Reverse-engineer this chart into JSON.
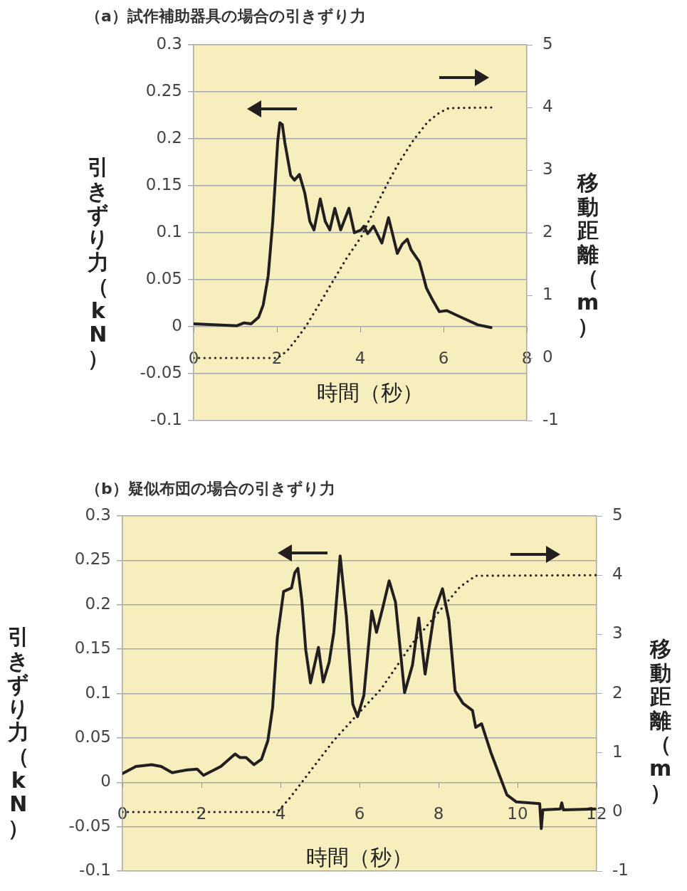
{
  "chart_data": [
    {
      "type": "line",
      "title": "（a）試作補助器具の場合の引きずり力",
      "xlabel": "時間（秒）",
      "ylabel": "引きずり力（kN）",
      "y2label": "移動距離（m）",
      "xlim": [
        0,
        8
      ],
      "xticks": [
        0,
        2,
        4,
        6,
        8
      ],
      "ylim": [
        -0.1,
        0.3
      ],
      "yticks": [
        -0.1,
        -0.05,
        0,
        0.05,
        0.1,
        0.15,
        0.2,
        0.25,
        0.3
      ],
      "y2lim": [
        -1,
        5
      ],
      "y2ticks": [
        -1,
        0,
        1,
        2,
        3,
        4,
        5
      ],
      "grid": "y",
      "marker": "none",
      "series": [
        {
          "color": "#231f20",
          "line_style": "solid",
          "x": [
            0,
            1.04,
            1.21,
            1.38,
            1.56,
            1.67,
            1.79,
            1.9,
            2.02,
            2.07,
            2.13,
            2.19,
            2.33,
            2.42,
            2.54,
            2.67,
            2.79,
            2.89,
            3.04,
            3.16,
            3.27,
            3.39,
            3.53,
            3.73,
            3.86,
            4.02,
            4.09,
            4.18,
            4.32,
            4.52,
            4.68,
            4.89,
            5.01,
            5.13,
            5.22,
            5.42,
            5.5,
            5.59,
            5.73,
            5.9,
            6.08,
            6.42,
            6.82,
            7.14
          ],
          "values": [
            0.003,
            0.001,
            0.004,
            0.003,
            0.01,
            0.023,
            0.054,
            0.112,
            0.198,
            0.217,
            0.215,
            0.196,
            0.161,
            0.156,
            0.162,
            0.142,
            0.112,
            0.103,
            0.136,
            0.112,
            0.103,
            0.126,
            0.103,
            0.126,
            0.1,
            0.103,
            0.107,
            0.099,
            0.107,
            0.089,
            0.116,
            0.078,
            0.088,
            0.093,
            0.082,
            0.069,
            0.056,
            0.041,
            0.029,
            0.016,
            0.017,
            0.01,
            0.002,
            -0.001
          ]
        },
        {
          "color": "#231f20",
          "line_style": "dotted",
          "axis": "y2",
          "x": [
            0,
            2.01,
            2.24,
            2.47,
            2.7,
            2.99,
            3.33,
            3.67,
            4.02,
            4.36,
            4.65,
            4.93,
            5.28,
            5.62,
            5.91,
            6.13,
            7.16
          ],
          "values": [
            0,
            0,
            0.11,
            0.3,
            0.51,
            0.83,
            1.21,
            1.59,
            1.93,
            2.4,
            2.78,
            3.12,
            3.48,
            3.77,
            3.92,
            3.99,
            4
          ]
        }
      ]
    },
    {
      "type": "line",
      "title": "（b）疑似布団の場合の引きずり力",
      "xlabel": "時間（秒）",
      "ylabel": "引きずり力（kN）",
      "y2label": "移動距離（m）",
      "xlim": [
        0,
        12
      ],
      "xticks": [
        0,
        2,
        4,
        6,
        8,
        10,
        12
      ],
      "ylim": [
        -0.1,
        0.3
      ],
      "yticks": [
        -0.1,
        -0.05,
        0,
        0.05,
        0.1,
        0.15,
        0.2,
        0.25,
        0.3
      ],
      "y2lim": [
        -1,
        5
      ],
      "y2ticks": [
        -1,
        0,
        1,
        2,
        3,
        4,
        5
      ],
      "grid": "y",
      "marker": "none",
      "series": [
        {
          "color": "#231f20",
          "line_style": "solid",
          "x": [
            0,
            0.34,
            0.74,
            0.98,
            1.26,
            1.62,
            1.89,
            2.05,
            2.49,
            2.85,
            2.97,
            3.13,
            3.33,
            3.52,
            3.68,
            3.8,
            3.92,
            4.08,
            4.28,
            4.36,
            4.44,
            4.54,
            4.64,
            4.76,
            4.96,
            5.08,
            5.23,
            5.35,
            5.51,
            5.67,
            5.83,
            5.95,
            6.11,
            6.31,
            6.43,
            6.59,
            6.75,
            6.91,
            7.14,
            7.34,
            7.5,
            7.66,
            7.9,
            8.1,
            8.26,
            8.42,
            8.62,
            8.86,
            8.94,
            9.09,
            9.33,
            9.73,
            9.97,
            10.56,
            10.6,
            10.64,
            11.08,
            11.12,
            11.16,
            11.96
          ],
          "values": [
            0.01,
            0.018,
            0.02,
            0.018,
            0.011,
            0.014,
            0.015,
            0.008,
            0.018,
            0.032,
            0.028,
            0.028,
            0.02,
            0.026,
            0.047,
            0.084,
            0.163,
            0.215,
            0.219,
            0.236,
            0.241,
            0.205,
            0.149,
            0.112,
            0.152,
            0.113,
            0.135,
            0.169,
            0.255,
            0.186,
            0.088,
            0.074,
            0.098,
            0.193,
            0.169,
            0.197,
            0.227,
            0.203,
            0.101,
            0.132,
            0.185,
            0.122,
            0.193,
            0.218,
            0.183,
            0.103,
            0.089,
            0.081,
            0.062,
            0.066,
            0.033,
            -0.014,
            -0.022,
            -0.024,
            -0.052,
            -0.031,
            -0.03,
            -0.023,
            -0.031,
            -0.03
          ]
        },
        {
          "color": "#231f20",
          "line_style": "dotted",
          "axis": "y2",
          "x": [
            0,
            3.92,
            4.24,
            4.64,
            5.35,
            5.91,
            6.55,
            7.34,
            7.98,
            8.54,
            8.94,
            12
          ],
          "values": [
            0,
            0,
            0.24,
            0.59,
            1.21,
            1.62,
            2.08,
            2.85,
            3.36,
            3.8,
            3.99,
            4
          ]
        }
      ]
    }
  ]
}
